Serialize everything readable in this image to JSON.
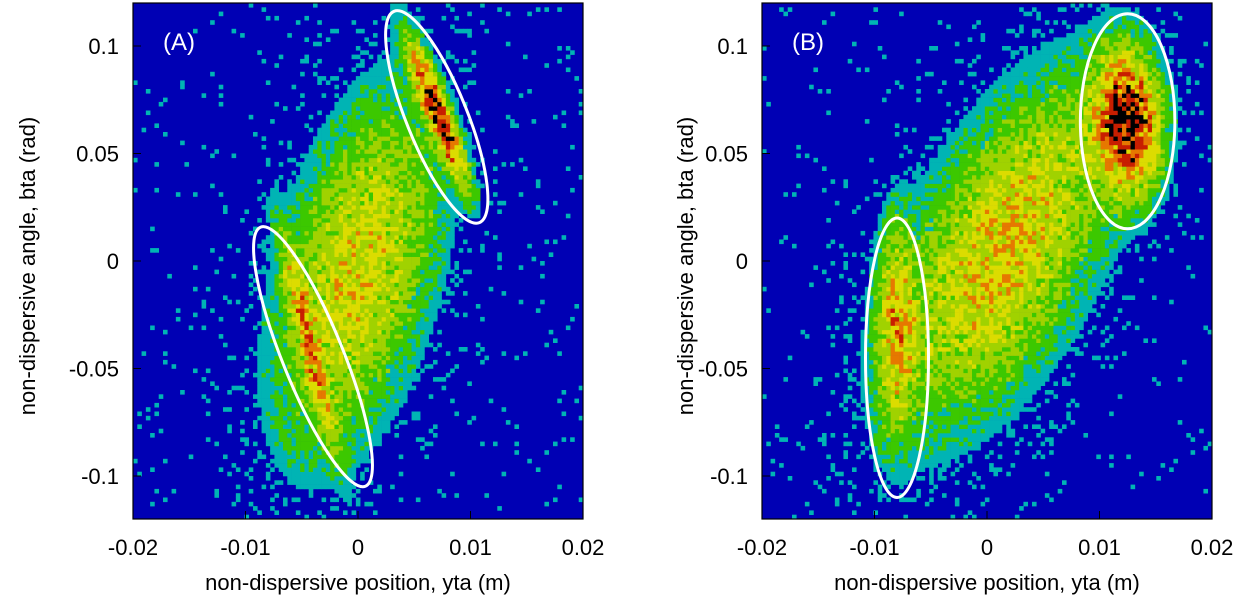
{
  "chart_data": [
    {
      "type": "heatmap",
      "panel_label": "(A)",
      "xlabel": "non-dispersive position, yta (m)",
      "ylabel": "non-dispersive angle, bta (rad)",
      "xlim": [
        -0.02,
        0.02
      ],
      "ylim": [
        -0.12,
        0.12
      ],
      "x_ticks": [
        -0.02,
        -0.01,
        0,
        0.01,
        0.02
      ],
      "x_tick_labels": [
        "-0.02",
        "-0.01",
        "0",
        "0.01",
        "0.02"
      ],
      "y_ticks": [
        -0.1,
        -0.05,
        0,
        0.05,
        0.1
      ],
      "y_tick_labels": [
        "-0.1",
        "-0.05",
        "0",
        "0.05",
        "0.1"
      ],
      "grid": false,
      "colors": {
        "background": "#0000b4",
        "low": "#00b4b4",
        "mid": "#3cc800",
        "high": "#dcdc00",
        "peak": "#c81e00",
        "max": "#000000"
      },
      "clusters": [
        {
          "cx": 0.0,
          "cy": -0.005,
          "sx": 0.0046,
          "sy": 0.052,
          "rho": 0.45,
          "weight": 1.0
        },
        {
          "cx": 0.007,
          "cy": 0.07,
          "sx": 0.0016,
          "sy": 0.02,
          "rho": -0.9,
          "weight": 2.3
        },
        {
          "cx": -0.0045,
          "cy": -0.035,
          "sx": 0.0016,
          "sy": 0.032,
          "rho": -0.92,
          "weight": 1.0
        }
      ],
      "ellipses": [
        {
          "center": [
            0.007,
            0.067
          ],
          "semi_major": 0.053,
          "semi_minor": 0.0027,
          "tilt": "negative"
        },
        {
          "center": [
            -0.004,
            -0.0445
          ],
          "semi_major": 0.065,
          "semi_minor": 0.0027,
          "tilt": "negative"
        }
      ]
    },
    {
      "type": "heatmap",
      "panel_label": "(B)",
      "xlabel": "non-dispersive position, yta (m)",
      "ylabel": "non-dispersive angle, bta (rad)",
      "xlim": [
        -0.02,
        0.02
      ],
      "ylim": [
        -0.12,
        0.12
      ],
      "x_ticks": [
        -0.02,
        -0.01,
        0,
        0.01,
        0.02
      ],
      "x_tick_labels": [
        "-0.02",
        "-0.01",
        "0",
        "0.01",
        "0.02"
      ],
      "y_ticks": [
        -0.1,
        -0.05,
        0,
        0.05,
        0.1
      ],
      "y_tick_labels": [
        "-0.1",
        "-0.05",
        "0",
        "0.05",
        "0.1"
      ],
      "grid": false,
      "colors": {
        "background": "#0000b4",
        "low": "#00b4b4",
        "mid": "#3cc800",
        "high": "#dcdc00",
        "peak": "#c81e00",
        "max": "#000000"
      },
      "clusters": [
        {
          "cx": 0.0015,
          "cy": 0.005,
          "sx": 0.0062,
          "sy": 0.05,
          "rho": 0.58,
          "weight": 1.0
        },
        {
          "cx": 0.0125,
          "cy": 0.065,
          "sx": 0.0018,
          "sy": 0.02,
          "rho": -0.1,
          "weight": 2.0
        },
        {
          "cx": -0.008,
          "cy": -0.03,
          "sx": 0.0011,
          "sy": 0.03,
          "rho": 0.0,
          "weight": 0.9
        }
      ],
      "ellipses": [
        {
          "center": [
            0.0125,
            0.065
          ],
          "semi_major": 0.05,
          "semi_minor": 0.0042,
          "tilt": "none"
        },
        {
          "center": [
            -0.008,
            -0.045
          ],
          "semi_major": 0.065,
          "semi_minor": 0.0028,
          "tilt": "none"
        }
      ]
    }
  ]
}
